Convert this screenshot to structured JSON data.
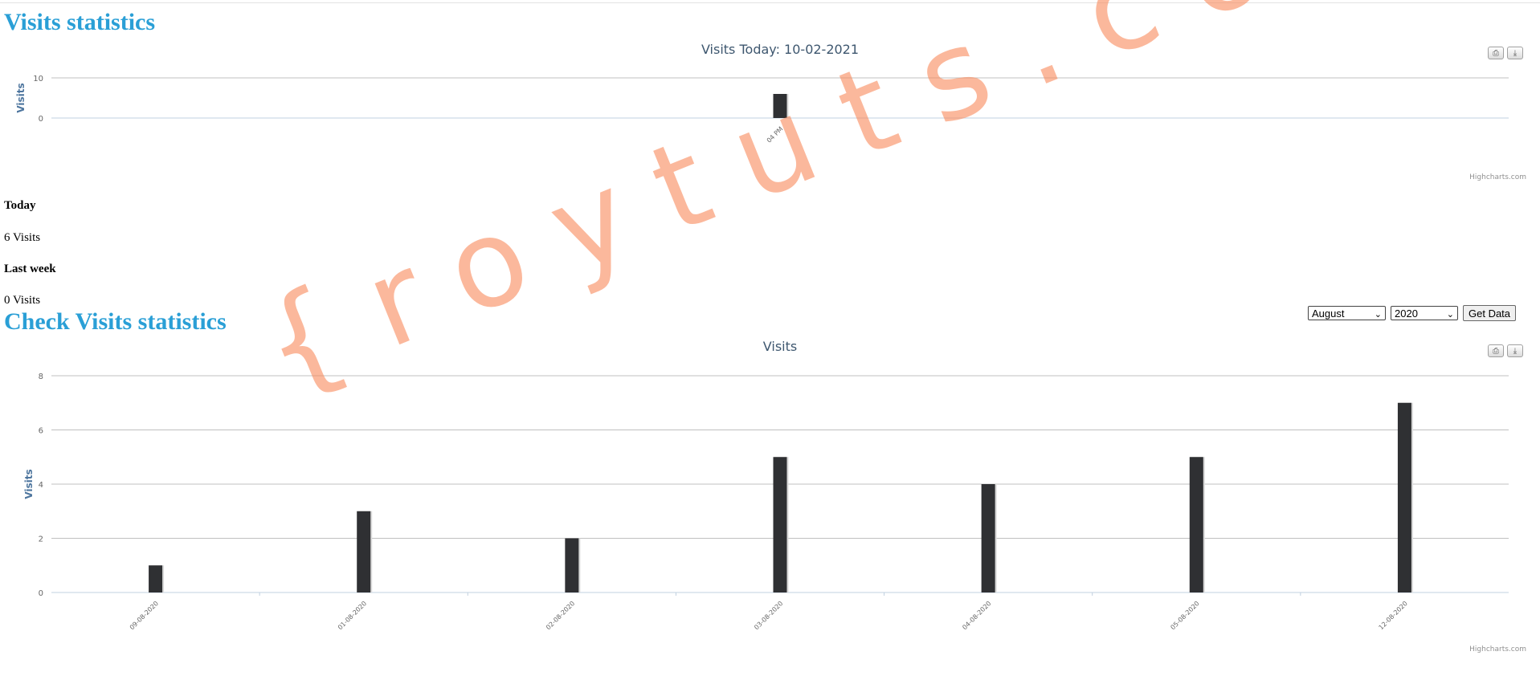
{
  "page": {
    "title_today": "Visits statistics",
    "title_check": "Check Visits statistics"
  },
  "stats": {
    "today_label": "Today",
    "today_value": "6 Visits",
    "last_week_label": "Last week",
    "last_week_value": "0 Visits"
  },
  "controls": {
    "month": "August",
    "year": "2020",
    "get_data_label": "Get Data"
  },
  "watermark": "{roytuts.com}",
  "credits": "Highcharts.com",
  "colors": {
    "title": "#2a9fd6",
    "bar": "#2f3033",
    "watermark": "#f98a5b"
  },
  "chart_data": [
    {
      "type": "bar",
      "title": "Visits Today: 10-02-2021",
      "ylabel": "Visits",
      "xlabel": "",
      "categories": [
        "04 PM"
      ],
      "values": [
        6
      ],
      "ylim": [
        0,
        10
      ],
      "yticks": [
        0,
        10
      ],
      "grid": true,
      "legend": "none"
    },
    {
      "type": "bar",
      "title": "Visits",
      "ylabel": "Visits",
      "xlabel": "",
      "categories": [
        "09-08-2020",
        "01-08-2020",
        "02-08-2020",
        "03-08-2020",
        "04-08-2020",
        "05-08-2020",
        "12-08-2020"
      ],
      "values": [
        1,
        3,
        2,
        5,
        4,
        5,
        7
      ],
      "ylim": [
        0,
        8
      ],
      "yticks": [
        0,
        2,
        4,
        6,
        8
      ],
      "grid": true,
      "legend": "none"
    }
  ]
}
